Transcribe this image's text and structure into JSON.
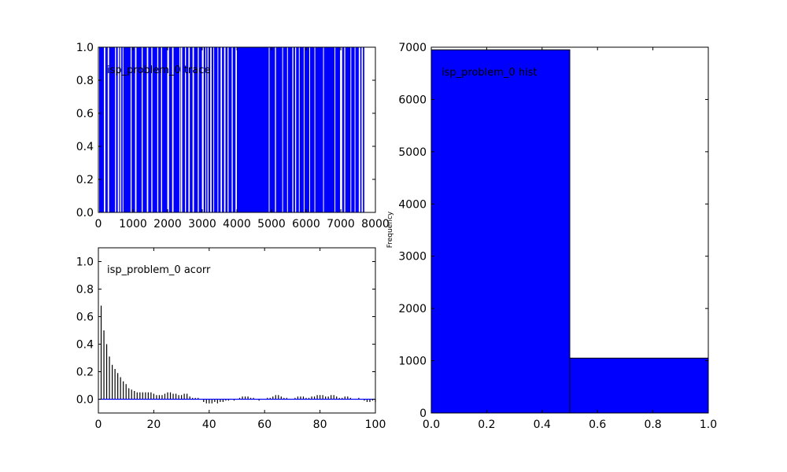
{
  "chart_data": [
    {
      "type": "trace",
      "annotation": "isp_problem_0 trace",
      "xlim": [
        0,
        8000
      ],
      "ylim": [
        0,
        1.0
      ],
      "xticks": [
        0,
        1000,
        2000,
        3000,
        4000,
        5000,
        6000,
        7000,
        8000
      ],
      "yticks": [
        0.0,
        0.2,
        0.4,
        0.6,
        0.8,
        1.0
      ],
      "ytick_labels": [
        "0.0",
        "0.2",
        "0.4",
        "0.6",
        "0.8",
        "1.0"
      ],
      "color": "#0000ff",
      "zero_intervals": [
        [
          0,
          20
        ],
        [
          160,
          200
        ],
        [
          270,
          310
        ],
        [
          480,
          510
        ],
        [
          560,
          600
        ],
        [
          630,
          660
        ],
        [
          700,
          720
        ],
        [
          930,
          960
        ],
        [
          1060,
          1100
        ],
        [
          1250,
          1280
        ],
        [
          1400,
          1440
        ],
        [
          1530,
          1560
        ],
        [
          1700,
          1730
        ],
        [
          1810,
          1840
        ],
        [
          1990,
          2040
        ],
        [
          2130,
          2170
        ],
        [
          2340,
          2360
        ],
        [
          2380,
          2420
        ],
        [
          2500,
          2530
        ],
        [
          2600,
          2640
        ],
        [
          2720,
          2760
        ],
        [
          2870,
          2900
        ],
        [
          2990,
          3040
        ],
        [
          3090,
          3110
        ],
        [
          3150,
          3180
        ],
        [
          3230,
          3270
        ],
        [
          3320,
          3340
        ],
        [
          3440,
          3460
        ],
        [
          3530,
          3570
        ],
        [
          3630,
          3670
        ],
        [
          3730,
          3760
        ],
        [
          3850,
          3880
        ],
        [
          3960,
          4000
        ],
        [
          4920,
          4940
        ],
        [
          5100,
          5130
        ],
        [
          5310,
          5330
        ],
        [
          5450,
          5470
        ],
        [
          5600,
          5630
        ],
        [
          5680,
          5710
        ],
        [
          5790,
          5810
        ],
        [
          5930,
          5950
        ],
        [
          6090,
          6110
        ],
        [
          6240,
          6260
        ],
        [
          6490,
          6510
        ],
        [
          6820,
          6840
        ],
        [
          6980,
          7040
        ],
        [
          7100,
          7130
        ],
        [
          7280,
          7300
        ],
        [
          7400,
          7420
        ],
        [
          7520,
          7560
        ],
        [
          7600,
          7640
        ],
        [
          7680,
          8000
        ]
      ]
    },
    {
      "type": "bar",
      "annotation": "isp_problem_0 acorr",
      "xlim": [
        0,
        100
      ],
      "ylim": [
        -0.1,
        1.1
      ],
      "xticks": [
        0,
        20,
        40,
        60,
        80,
        100
      ],
      "yticks": [
        0.0,
        0.2,
        0.4,
        0.6,
        0.8,
        1.0
      ],
      "ytick_labels": [
        "0.0",
        "0.2",
        "0.4",
        "0.6",
        "0.8",
        "1.0"
      ],
      "line_color": "#0000ff",
      "lags": [
        1,
        2,
        3,
        4,
        5,
        6,
        7,
        8,
        9,
        10,
        11,
        12,
        13,
        14,
        15,
        16,
        17,
        18,
        19,
        20,
        21,
        22,
        23,
        24,
        25,
        26,
        27,
        28,
        29,
        30,
        31,
        32,
        33,
        34,
        35,
        36,
        37,
        38,
        39,
        40,
        41,
        42,
        43,
        44,
        45,
        46,
        47,
        48,
        49,
        50,
        51,
        52,
        53,
        54,
        55,
        56,
        57,
        58,
        59,
        60,
        61,
        62,
        63,
        64,
        65,
        66,
        67,
        68,
        69,
        70,
        71,
        72,
        73,
        74,
        75,
        76,
        77,
        78,
        79,
        80,
        81,
        82,
        83,
        84,
        85,
        86,
        87,
        88,
        89,
        90,
        91,
        92,
        93,
        94,
        95,
        96,
        97,
        98,
        99,
        100
      ],
      "values": [
        0.68,
        0.5,
        0.4,
        0.31,
        0.25,
        0.22,
        0.19,
        0.16,
        0.13,
        0.11,
        0.08,
        0.07,
        0.06,
        0.05,
        0.05,
        0.05,
        0.05,
        0.05,
        0.05,
        0.04,
        0.03,
        0.03,
        0.03,
        0.04,
        0.05,
        0.05,
        0.04,
        0.04,
        0.03,
        0.03,
        0.04,
        0.04,
        0.02,
        0.01,
        0.01,
        0.01,
        0.0,
        -0.02,
        -0.03,
        -0.03,
        -0.03,
        -0.02,
        -0.03,
        -0.02,
        -0.02,
        -0.01,
        -0.01,
        0.0,
        -0.01,
        0.0,
        0.01,
        0.02,
        0.02,
        0.02,
        0.01,
        0.01,
        0.0,
        -0.01,
        0.0,
        0.0,
        0.01,
        0.01,
        0.02,
        0.03,
        0.03,
        0.02,
        0.01,
        0.01,
        0.0,
        0.0,
        0.01,
        0.02,
        0.02,
        0.02,
        0.01,
        0.01,
        0.02,
        0.02,
        0.03,
        0.03,
        0.03,
        0.02,
        0.02,
        0.03,
        0.03,
        0.02,
        0.01,
        0.01,
        0.02,
        0.02,
        0.01,
        0.0,
        0.0,
        0.01,
        0.0,
        -0.01,
        -0.02,
        -0.02,
        -0.01,
        -0.02
      ]
    },
    {
      "type": "histogram",
      "annotation": "isp_problem_0 hist",
      "ylabel": "Frequency",
      "xlim": [
        0.0,
        1.0
      ],
      "ylim": [
        0,
        7000
      ],
      "xticks": [
        0.0,
        0.2,
        0.4,
        0.6,
        0.8,
        1.0
      ],
      "xtick_labels": [
        "0.0",
        "0.2",
        "0.4",
        "0.6",
        "0.8",
        "1.0"
      ],
      "yticks": [
        0,
        1000,
        2000,
        3000,
        4000,
        5000,
        6000,
        7000
      ],
      "bins": [
        [
          0.0,
          0.5
        ],
        [
          0.5,
          1.0
        ]
      ],
      "values": [
        6950,
        1050
      ],
      "color": "#0000ff"
    }
  ]
}
